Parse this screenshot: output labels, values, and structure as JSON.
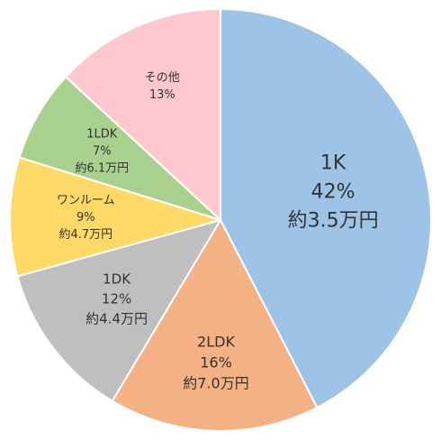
{
  "chart_data": {
    "type": "pie",
    "start_angle_deg": 0,
    "direction": "clockwise",
    "slices": [
      {
        "name": "1K",
        "percent_label": "42%",
        "value": 42,
        "amount_label": "約3.5万円",
        "color": "#9DC3E6"
      },
      {
        "name": "2LDK",
        "percent_label": "16%",
        "value": 16,
        "amount_label": "約7.0万円",
        "color": "#F4B183"
      },
      {
        "name": "1DK",
        "percent_label": "12%",
        "value": 12,
        "amount_label": "約4.4万円",
        "color": "#BFBFBF"
      },
      {
        "name": "ワンルーム",
        "percent_label": "9%",
        "value": 9,
        "amount_label": "約4.7万円",
        "color": "#FFD966"
      },
      {
        "name": "1LDK",
        "percent_label": "7%",
        "value": 7,
        "amount_label": "約6.1万円",
        "color": "#A9D18E"
      },
      {
        "name": "その他",
        "percent_label": "13%",
        "value": 13,
        "amount_label": "",
        "color": "#FFC7CE"
      }
    ]
  }
}
